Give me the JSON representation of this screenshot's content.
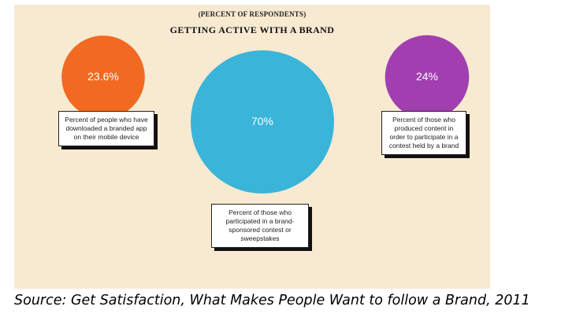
{
  "chart_data": {
    "type": "bubble",
    "subtitle": "(PERCENT OF RESPONDENTS)",
    "title": "GETTING ACTIVE WITH A BRAND",
    "items": [
      {
        "label": "23.6%",
        "value": 23.6,
        "color": "#f26a21",
        "description": "Percent of people who have downloaded a branded app on their mobile device"
      },
      {
        "label": "70%",
        "value": 70,
        "color": "#3bb4d9",
        "description": "Percent of those who participated in a brand-sponsored contest or sweepstakes"
      },
      {
        "label": "24%",
        "value": 24,
        "color": "#a23fb0",
        "description": "Percent of those who produced content in order to participate in a contest held by a brand"
      }
    ]
  },
  "source": "Source: Get Satisfaction, What Makes People Want to follow a Brand, 2011"
}
